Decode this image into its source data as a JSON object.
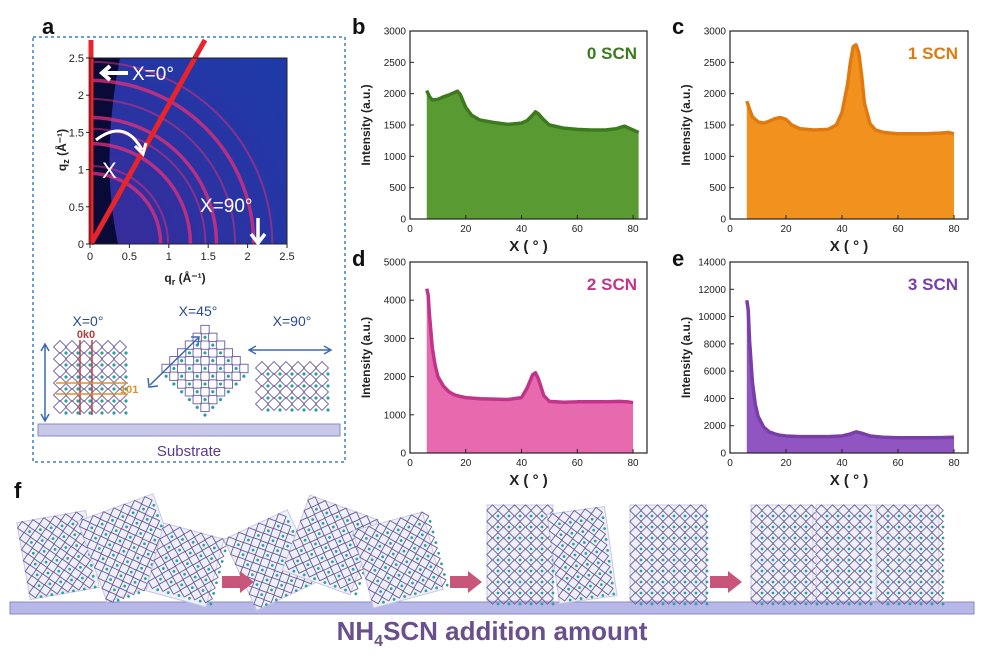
{
  "panel_letters": {
    "a": "a",
    "b": "b",
    "c": "c",
    "d": "d",
    "e": "e",
    "f": "f"
  },
  "panel_a": {
    "angle_0_label": "X=0°",
    "angle_90_label": "X=90°",
    "chi_label": "X",
    "qz_label": "q",
    "qz_sub": "z",
    "qz_unit": " (Å⁻¹)",
    "qr_label": "q",
    "qr_sub": "r",
    "qr_unit": " (Å⁻¹)",
    "qz_ticks": [
      "0",
      "0.5",
      "1",
      "1.5",
      "2",
      "2.5"
    ],
    "qr_ticks": [
      "0",
      "0.5",
      "1",
      "1.5",
      "2",
      "2.5"
    ],
    "orient_labels": [
      "X=0°",
      "X=45°",
      "X=90°"
    ],
    "plane_0k0": "0k0",
    "plane_101": "101",
    "substrate_label": "Substrate",
    "colors": {
      "map_bg": "#2233aa",
      "map_dark": "#0a0a3a",
      "ring": "#e0307a",
      "guide": "#e8242a",
      "panel_border": "#6aa0d8",
      "substrate": "#c8c8e8",
      "lattice": "#6a5a9a"
    }
  },
  "chart_data": [
    {
      "id": "b",
      "type": "area",
      "label": "0 SCN",
      "color": "#3d7a1e",
      "fill": "#5a9a32",
      "xlabel": "X ( ° )",
      "ylabel": "Intensity (a.u.)",
      "xlim": [
        0,
        85
      ],
      "ylim": [
        0,
        3000
      ],
      "xticks": [
        0,
        20,
        40,
        60,
        80
      ],
      "yticks": [
        0,
        500,
        1000,
        1500,
        2000,
        2500,
        3000
      ],
      "x": [
        6,
        7,
        8,
        10,
        12,
        14,
        16,
        17,
        18,
        20,
        22,
        25,
        30,
        35,
        40,
        42,
        44,
        45,
        46,
        48,
        50,
        55,
        60,
        65,
        70,
        74,
        76,
        77,
        78,
        80,
        82
      ],
      "y": [
        2050,
        1950,
        1900,
        1910,
        1950,
        1980,
        2020,
        2040,
        1990,
        1780,
        1660,
        1580,
        1540,
        1510,
        1530,
        1570,
        1660,
        1710,
        1680,
        1580,
        1500,
        1450,
        1430,
        1420,
        1420,
        1440,
        1470,
        1480,
        1460,
        1420,
        1380
      ]
    },
    {
      "id": "c",
      "type": "area",
      "label": "1 SCN",
      "color": "#e07a10",
      "fill": "#f2921e",
      "xlabel": "X ( ° )",
      "ylabel": "Intensity (a.u.)",
      "xlim": [
        0,
        85
      ],
      "ylim": [
        0,
        3000
      ],
      "xticks": [
        0,
        20,
        40,
        60,
        80
      ],
      "yticks": [
        0,
        500,
        1000,
        1500,
        2000,
        2500,
        3000
      ],
      "x": [
        6,
        7,
        8,
        10,
        12,
        14,
        16,
        18,
        20,
        22,
        25,
        30,
        35,
        38,
        40,
        42,
        43,
        44,
        45,
        46,
        47,
        48,
        50,
        52,
        55,
        60,
        65,
        70,
        75,
        78,
        80
      ],
      "y": [
        1880,
        1750,
        1630,
        1550,
        1530,
        1560,
        1600,
        1620,
        1590,
        1500,
        1440,
        1420,
        1430,
        1500,
        1700,
        2150,
        2500,
        2750,
        2780,
        2650,
        2300,
        1850,
        1520,
        1420,
        1380,
        1360,
        1360,
        1360,
        1370,
        1380,
        1360
      ]
    },
    {
      "id": "d",
      "type": "area",
      "label": "2 SCN",
      "color": "#c0358a",
      "fill": "#e86aae",
      "xlabel": "X ( ° )",
      "ylabel": "Intensity (a.u.)",
      "xlim": [
        0,
        85
      ],
      "ylim": [
        0,
        5000
      ],
      "xticks": [
        0,
        20,
        40,
        60,
        80
      ],
      "yticks": [
        0,
        1000,
        2000,
        3000,
        4000,
        5000
      ],
      "x": [
        6,
        6.5,
        7,
        8,
        9,
        10,
        12,
        14,
        16,
        18,
        20,
        25,
        30,
        35,
        40,
        42,
        44,
        45,
        46,
        48,
        50,
        55,
        60,
        65,
        70,
        75,
        78,
        80
      ],
      "y": [
        4300,
        4150,
        3600,
        2750,
        2300,
        2000,
        1750,
        1600,
        1520,
        1480,
        1450,
        1420,
        1410,
        1400,
        1450,
        1700,
        2050,
        2100,
        1950,
        1500,
        1350,
        1330,
        1340,
        1340,
        1340,
        1350,
        1340,
        1320
      ]
    },
    {
      "id": "e",
      "type": "area",
      "label": "3 SCN",
      "color": "#7a3fa6",
      "fill": "#9055c0",
      "xlabel": "X ( ° )",
      "ylabel": "Intensity (a.u.)",
      "xlim": [
        0,
        85
      ],
      "ylim": [
        0,
        14000
      ],
      "xticks": [
        0,
        20,
        40,
        60,
        80
      ],
      "yticks": [
        0,
        2000,
        4000,
        6000,
        8000,
        10000,
        12000,
        14000
      ],
      "x": [
        6,
        6.5,
        7,
        8,
        9,
        10,
        12,
        14,
        16,
        18,
        20,
        25,
        30,
        35,
        40,
        43,
        45,
        47,
        50,
        55,
        60,
        65,
        70,
        75,
        80
      ],
      "y": [
        11200,
        10500,
        8200,
        5200,
        3600,
        2700,
        1900,
        1550,
        1400,
        1300,
        1250,
        1200,
        1200,
        1200,
        1250,
        1400,
        1550,
        1450,
        1250,
        1150,
        1120,
        1120,
        1120,
        1130,
        1150
      ]
    }
  ],
  "panel_f": {
    "bottom_title_main": "NH",
    "bottom_title_sub": "4",
    "bottom_title_rest": "SCN addition amount",
    "arrow_color": "#c8557a",
    "substrate_color": "#b8b8e8"
  }
}
